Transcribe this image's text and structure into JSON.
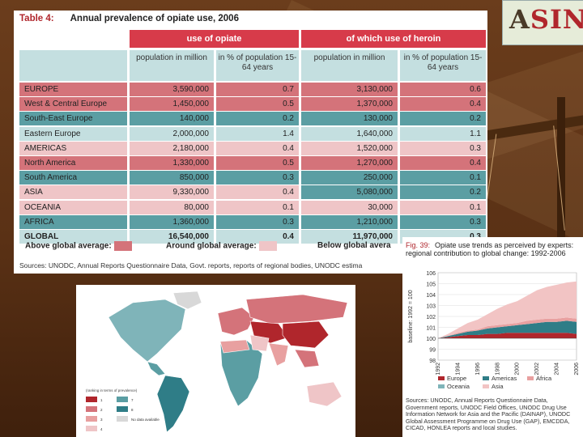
{
  "table": {
    "number": "Table 4:",
    "title": "Annual prevalence of opiate use, 2006",
    "group_headers": [
      "use of opiate",
      "of which use of heroin"
    ],
    "sub_headers": [
      "population in million",
      "in % of population 15-64 years",
      "population in million",
      "in % of population 15-64 years"
    ],
    "colors": {
      "above": "#d4737a",
      "around": "#efc5c7",
      "below": "#5b9ea3",
      "neutral": "#c4dfe0"
    },
    "rows": [
      {
        "name": "EUROPE",
        "c1": "3,590,000",
        "c2": "0.7",
        "c3": "3,130,000",
        "c4": "0.6",
        "s1": "above",
        "s2": "above",
        "bold": false
      },
      {
        "name": "West & Central Europe",
        "c1": "1,450,000",
        "c2": "0.5",
        "c3": "1,370,000",
        "c4": "0.4",
        "s1": "above",
        "s2": "above",
        "bold": false
      },
      {
        "name": "South-East Europe",
        "c1": "140,000",
        "c2": "0.2",
        "c3": "130,000",
        "c4": "0.2",
        "s1": "below",
        "s2": "below",
        "bold": false
      },
      {
        "name": "Eastern Europe",
        "c1": "2,000,000",
        "c2": "1.4",
        "c3": "1,640,000",
        "c4": "1.1",
        "s1": "neutral",
        "s2": "neutral",
        "bold": false
      },
      {
        "name": "AMERICAS",
        "c1": "2,180,000",
        "c2": "0.4",
        "c3": "1,520,000",
        "c4": "0.3",
        "s1": "around",
        "s2": "around",
        "bold": false
      },
      {
        "name": "North America",
        "c1": "1,330,000",
        "c2": "0.5",
        "c3": "1,270,000",
        "c4": "0.4",
        "s1": "above",
        "s2": "above",
        "bold": false
      },
      {
        "name": "South America",
        "c1": "850,000",
        "c2": "0.3",
        "c3": "250,000",
        "c4": "0.1",
        "s1": "below",
        "s2": "below",
        "bold": false
      },
      {
        "name": "ASIA",
        "c1": "9,330,000",
        "c2": "0.4",
        "c3": "5,080,000",
        "c4": "0.2",
        "s1": "around",
        "s2": "below",
        "bold": false
      },
      {
        "name": "OCEANIA",
        "c1": "80,000",
        "c2": "0.1",
        "c3": "30,000",
        "c4": "0.1",
        "s1": "around",
        "s2": "around",
        "bold": false
      },
      {
        "name": "AFRICA",
        "c1": "1,360,000",
        "c2": "0.3",
        "c3": "1,210,000",
        "c4": "0.3",
        "s1": "below",
        "s2": "below",
        "bold": false
      },
      {
        "name": "GLOBAL",
        "c1": "16,540,000",
        "c2": "0.4",
        "c3": "11,970,000",
        "c4": "0.3",
        "s1": "neutral",
        "s2": "neutral",
        "bold": true
      }
    ],
    "legend": {
      "above": "Above global average:",
      "around": "Around global average:",
      "below": "Below global avera"
    },
    "source": "Sources: UNODC, Annual Reports Questionnaire Data, Govt. reports, reports of regional bodies, UNODC estima"
  },
  "logo": {
    "text_a": "A",
    "text_rest": "SIN"
  },
  "map": {
    "legend_title": "(ranking in terms of prevalence)",
    "legend_items": [
      "1",
      "2",
      "3",
      "4",
      "5",
      "6",
      "7",
      "8",
      "No data available"
    ]
  },
  "chart_data": {
    "type": "area",
    "number": "Fig. 39:",
    "title": "Opiate use trends as perceived by experts: regional contribution to global change: 1992-2006",
    "ylabel": "baseline: 1992 = 100",
    "x": [
      1992,
      1993,
      1994,
      1995,
      1996,
      1997,
      1998,
      1999,
      2000,
      2001,
      2002,
      2003,
      2004,
      2005,
      2006
    ],
    "x_tick_labels": [
      "1992",
      "1994",
      "1996",
      "1998",
      "2000",
      "2002",
      "2004",
      "2006"
    ],
    "ylim": [
      98,
      106
    ],
    "y_ticks": [
      98,
      99,
      100,
      101,
      102,
      103,
      104,
      105,
      106
    ],
    "series": [
      {
        "name": "Europe",
        "color": "#b0262c",
        "values": [
          0,
          0.1,
          0.2,
          0.3,
          0.3,
          0.4,
          0.4,
          0.5,
          0.5,
          0.5,
          0.5,
          0.5,
          0.5,
          0.5,
          0.4
        ]
      },
      {
        "name": "Americas",
        "color": "#2f7d87",
        "values": [
          0,
          0.1,
          0.2,
          0.3,
          0.4,
          0.5,
          0.6,
          0.6,
          0.7,
          0.8,
          0.9,
          1.0,
          1.0,
          1.1,
          1.1
        ]
      },
      {
        "name": "Africa",
        "color": "#e8a0a0",
        "values": [
          0,
          0,
          0.1,
          0.1,
          0.1,
          0.2,
          0.2,
          0.2,
          0.2,
          0.3,
          0.3,
          0.3,
          0.3,
          0.3,
          0.3
        ]
      },
      {
        "name": "Oceania",
        "color": "#7fb4b9",
        "values": [
          0,
          0,
          0,
          0,
          0,
          0,
          0,
          0,
          0,
          0,
          0,
          0,
          0,
          0,
          0
        ]
      },
      {
        "name": "Asia",
        "color": "#f2c4c4",
        "values": [
          0,
          0.2,
          0.4,
          0.7,
          0.9,
          1.1,
          1.5,
          1.8,
          2.0,
          2.3,
          2.7,
          2.9,
          3.1,
          3.2,
          3.4
        ]
      }
    ],
    "source": "Sources: UNODC, Annual Reports Questionnaire Data, Government reports, UNODC Field Offices, UNODC Drug Use Information Network for Asia and the Pacific (DAINAP), UNODC Global Assessment Programme on Drug Use (GAP), EMCDDA, CICAD, HONLEA reports and local studies."
  }
}
